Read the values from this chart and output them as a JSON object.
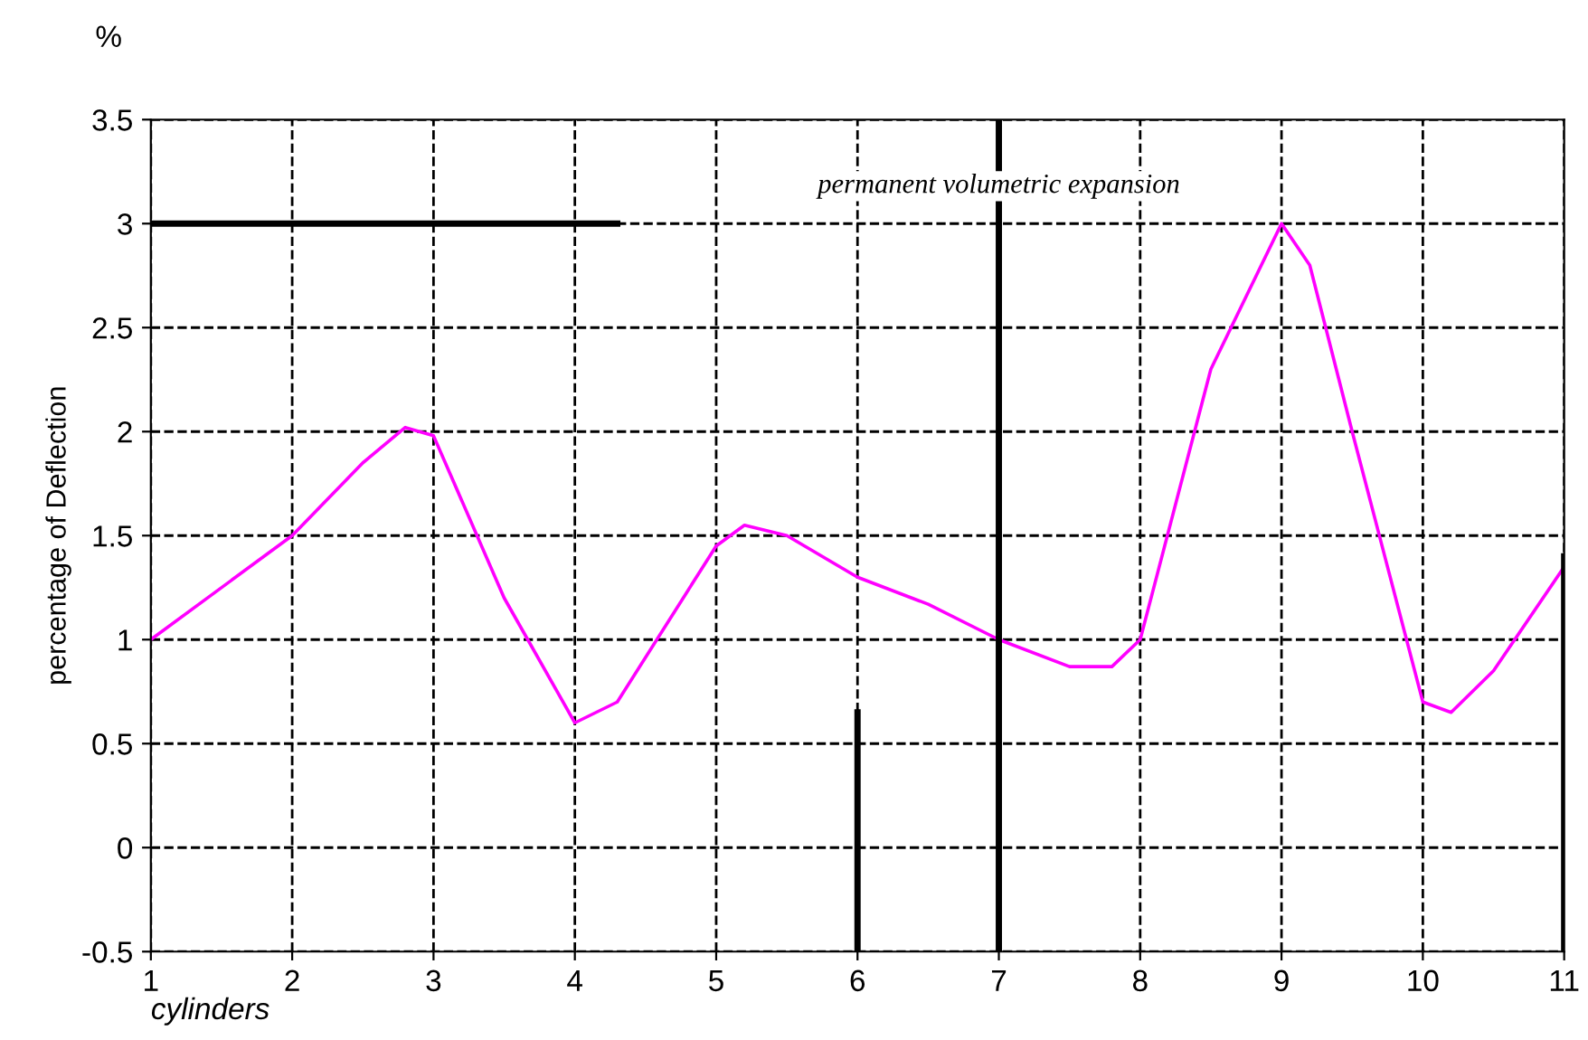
{
  "chart_data": {
    "type": "line",
    "xlabel": "cylinders",
    "ylabel": "percentage of Deflection",
    "annotations": [
      "%"
    ],
    "xlim": [
      1,
      11
    ],
    "xticks": [
      1,
      2,
      3,
      4,
      5,
      6,
      7,
      8,
      9,
      10,
      11
    ],
    "ylim": [
      -0.5,
      3.5
    ],
    "yticks": [
      -0.5,
      0,
      0.5,
      1,
      1.5,
      2,
      2.5,
      3,
      3.5
    ],
    "grid": true,
    "ref_lines": [
      {
        "axis": "x",
        "value": 7,
        "label": "permanent volumetric expansion",
        "color": "#000000"
      }
    ],
    "series": [
      {
        "color": "#ff00ff",
        "x": [
          1,
          2,
          2.5,
          2.8,
          3,
          3.5,
          4,
          4.3,
          5,
          5.2,
          5.5,
          6,
          6.5,
          7,
          7.5,
          7.8,
          8,
          8.5,
          9,
          9.2,
          9.5,
          10,
          10.2,
          10.5,
          11
        ],
        "values": [
          1,
          1.5,
          1.85,
          2.02,
          1.98,
          1.2,
          0.6,
          0.7,
          1.45,
          1.55,
          1.5,
          1.3,
          1.17,
          1.0,
          0.87,
          0.87,
          1.0,
          2.3,
          3.0,
          2.8,
          2.0,
          0.7,
          0.65,
          0.85,
          1.35
        ]
      },
      {
        "color": "#000000",
        "x": [
          1,
          4.3
        ],
        "values": [
          3,
          3
        ]
      },
      {
        "color": "#000000",
        "x": [
          6,
          6
        ],
        "values": [
          -0.5,
          0.65
        ]
      },
      {
        "color": "#000000",
        "x": [
          11,
          11
        ],
        "values": [
          -0.5,
          1.4
        ]
      }
    ]
  }
}
